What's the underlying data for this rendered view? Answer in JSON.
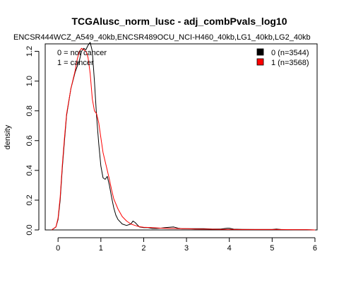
{
  "chart_data": {
    "type": "line",
    "title": "TCGAlusc_norm_lusc - adj_combPvals_log10",
    "subtitle": "ENCSR444WCZ_A549_40kb,ENCSR489OCU_NCI-H460_40kb,LG1_40kb,LG2_40kb",
    "xlabel": "",
    "ylabel": "density",
    "xlim": [
      -0.3,
      6.05
    ],
    "ylim": [
      0,
      1.25
    ],
    "x_ticks": [
      "0",
      "1",
      "2",
      "3",
      "4",
      "5",
      "6"
    ],
    "y_ticks": [
      "0.0",
      "0.2",
      "0.4",
      "0.6",
      "0.8",
      "1.0",
      "1.2"
    ],
    "notes": [
      "0 = not cancer",
      "1 = cancer"
    ],
    "legend_position": "top-right",
    "series": [
      {
        "name": "0 (n=3544)",
        "color": "#000000",
        "x": [
          -0.15,
          -0.05,
          0.0,
          0.05,
          0.1,
          0.15,
          0.2,
          0.3,
          0.4,
          0.5,
          0.55,
          0.6,
          0.65,
          0.7,
          0.75,
          0.8,
          0.85,
          0.9,
          0.95,
          1.0,
          1.05,
          1.1,
          1.15,
          1.2,
          1.25,
          1.3,
          1.35,
          1.4,
          1.5,
          1.6,
          1.7,
          1.75,
          1.8,
          1.9,
          2.0,
          2.1,
          2.2,
          2.3,
          2.4,
          2.5,
          2.6,
          2.7,
          2.8,
          2.9,
          3.0,
          3.2,
          3.4,
          3.6,
          3.8,
          3.95,
          4.0,
          4.1,
          4.3,
          4.6,
          5.0,
          5.1,
          5.2,
          5.4,
          5.6,
          5.8,
          6.0
        ],
        "y": [
          0.0,
          0.02,
          0.07,
          0.2,
          0.42,
          0.6,
          0.77,
          0.95,
          1.06,
          1.14,
          1.2,
          1.22,
          1.21,
          1.24,
          1.26,
          1.2,
          1.0,
          0.76,
          0.58,
          0.43,
          0.35,
          0.34,
          0.36,
          0.3,
          0.22,
          0.15,
          0.1,
          0.07,
          0.04,
          0.03,
          0.04,
          0.06,
          0.05,
          0.02,
          0.015,
          0.015,
          0.01,
          0.01,
          0.012,
          0.015,
          0.018,
          0.02,
          0.012,
          0.008,
          0.008,
          0.008,
          0.008,
          0.006,
          0.006,
          0.012,
          0.012,
          0.005,
          0.004,
          0.003,
          0.003,
          0.006,
          0.003,
          0.002,
          0.002,
          0.002,
          0.0
        ]
      },
      {
        "name": "1 (n=3568)",
        "color": "#ff0000",
        "x": [
          -0.15,
          -0.05,
          0.0,
          0.05,
          0.1,
          0.15,
          0.2,
          0.3,
          0.4,
          0.45,
          0.5,
          0.55,
          0.6,
          0.65,
          0.7,
          0.75,
          0.8,
          0.85,
          0.9,
          0.95,
          1.0,
          1.05,
          1.1,
          1.15,
          1.2,
          1.25,
          1.3,
          1.4,
          1.5,
          1.6,
          1.7,
          1.8,
          1.9,
          2.0,
          2.2,
          2.4,
          2.6,
          2.7,
          2.8,
          3.0,
          3.2,
          3.5,
          3.8,
          4.0,
          4.2,
          4.5,
          5.0,
          5.2,
          5.5,
          5.8,
          6.0
        ],
        "y": [
          0.0,
          0.02,
          0.08,
          0.22,
          0.44,
          0.62,
          0.78,
          0.95,
          1.07,
          1.15,
          1.2,
          1.22,
          1.21,
          1.2,
          1.16,
          1.05,
          0.88,
          0.8,
          0.78,
          0.72,
          0.62,
          0.52,
          0.46,
          0.4,
          0.34,
          0.27,
          0.21,
          0.14,
          0.09,
          0.06,
          0.04,
          0.03,
          0.022,
          0.018,
          0.015,
          0.012,
          0.01,
          0.01,
          0.009,
          0.008,
          0.006,
          0.005,
          0.004,
          0.004,
          0.003,
          0.003,
          0.003,
          0.003,
          0.002,
          0.002,
          0.0
        ]
      }
    ]
  }
}
